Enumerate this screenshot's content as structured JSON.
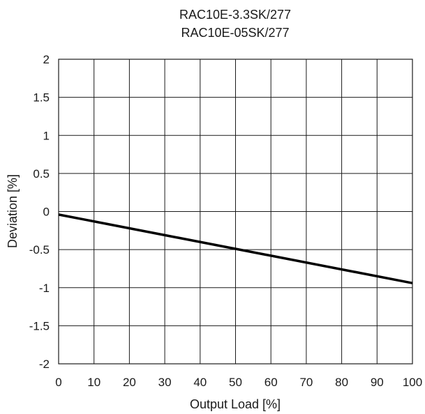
{
  "chart_data": {
    "type": "line",
    "title_lines": [
      "RAC10E-3.3SK/277",
      "RAC10E-05SK/277"
    ],
    "xlabel": "Output Load [%]",
    "ylabel": "Deviation [%]",
    "xlim": [
      0,
      100
    ],
    "ylim": [
      -2,
      2
    ],
    "x_ticks": [
      0,
      10,
      20,
      30,
      40,
      50,
      60,
      70,
      80,
      90,
      100
    ],
    "y_ticks": [
      2,
      1.5,
      1,
      0.5,
      0,
      -0.5,
      -1,
      -1.5,
      -2
    ],
    "x_tick_labels": [
      "0",
      "10",
      "20",
      "30",
      "40",
      "50",
      "60",
      "70",
      "80",
      "90",
      "100"
    ],
    "y_tick_labels": [
      "2",
      "1.5",
      "1",
      "0.5",
      "0",
      "-0.5",
      "-1",
      "-1.5",
      "-2"
    ],
    "grid": true,
    "legend": "none",
    "series": [
      {
        "color": "#000000",
        "x": [
          0,
          100
        ],
        "y": [
          -0.04,
          -0.94
        ]
      }
    ]
  }
}
